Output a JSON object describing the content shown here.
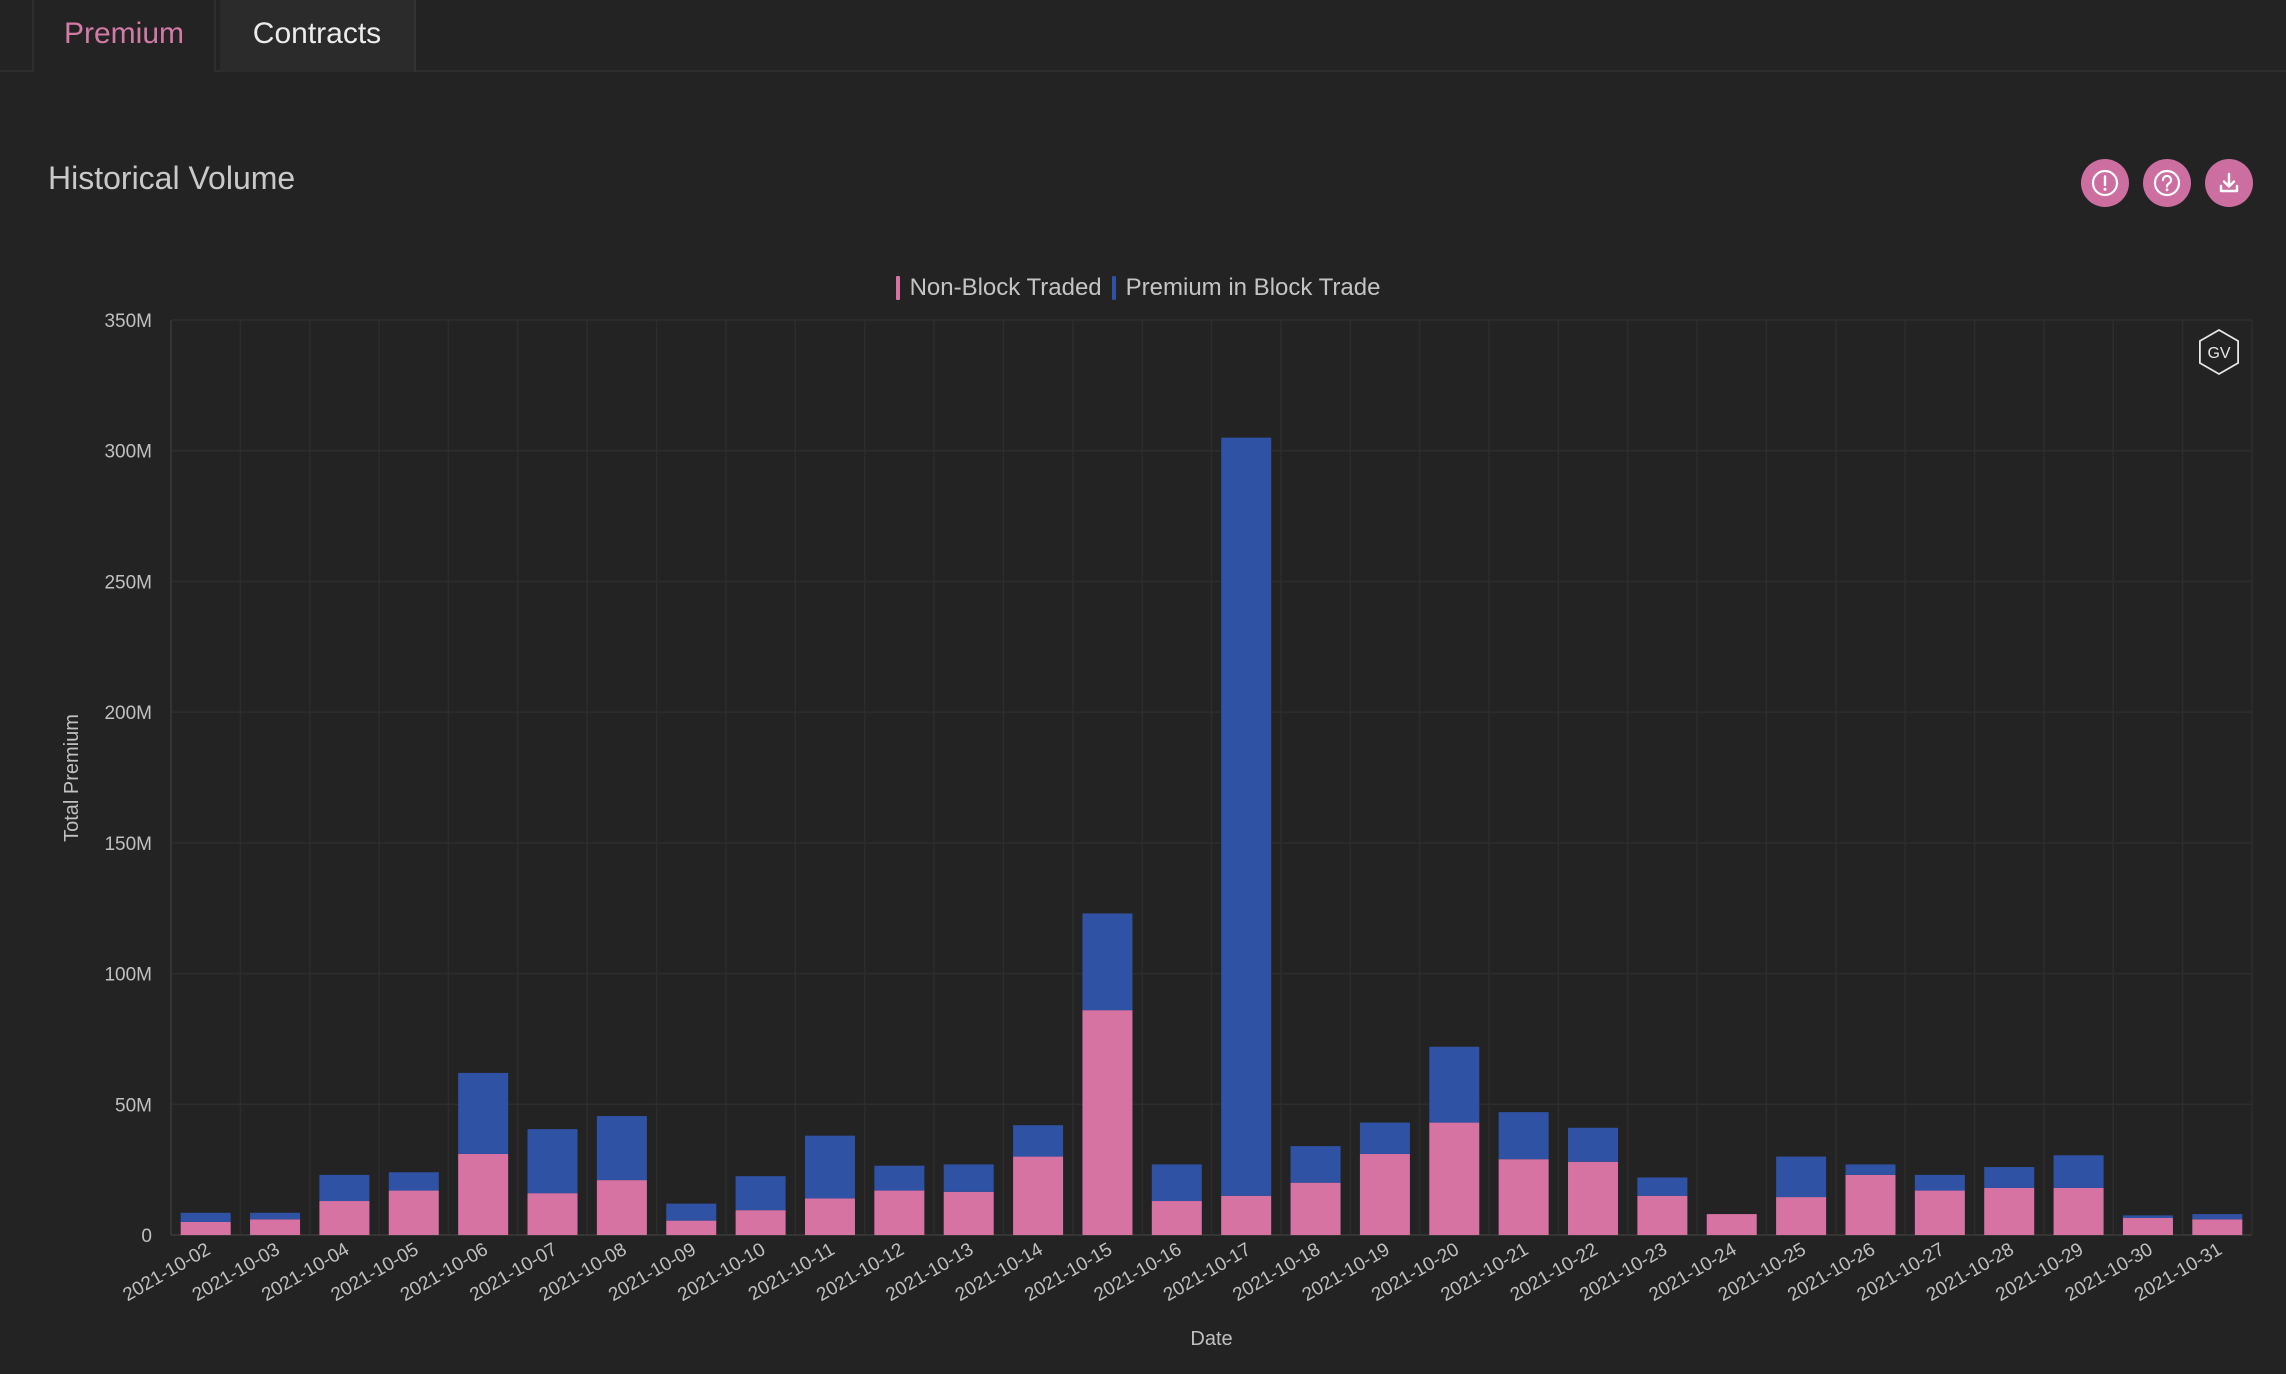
{
  "tabs": [
    {
      "label": "Premium",
      "active": true
    },
    {
      "label": "Contracts",
      "active": false
    }
  ],
  "panel": {
    "title": "Historical Volume",
    "icons": [
      "alert-icon",
      "help-icon",
      "download-icon"
    ]
  },
  "colors": {
    "non_block": "#d673a3",
    "block": "#2f52a5",
    "accent": "#cc6fa0",
    "background": "#232323"
  },
  "watermark": "GV",
  "chart_data": {
    "type": "bar",
    "stacked": true,
    "xlabel": "Date",
    "ylabel": "Total Premium",
    "ylim": [
      0,
      350000000
    ],
    "yticks": [
      0,
      50000000,
      100000000,
      150000000,
      200000000,
      250000000,
      300000000,
      350000000
    ],
    "ytick_labels": [
      "0",
      "50M",
      "100M",
      "150M",
      "200M",
      "250M",
      "300M",
      "350M"
    ],
    "grid": true,
    "legend_position": "top-center",
    "categories": [
      "2021-10-02",
      "2021-10-03",
      "2021-10-04",
      "2021-10-05",
      "2021-10-06",
      "2021-10-07",
      "2021-10-08",
      "2021-10-09",
      "2021-10-10",
      "2021-10-11",
      "2021-10-12",
      "2021-10-13",
      "2021-10-14",
      "2021-10-15",
      "2021-10-16",
      "2021-10-17",
      "2021-10-18",
      "2021-10-19",
      "2021-10-20",
      "2021-10-21",
      "2021-10-22",
      "2021-10-23",
      "2021-10-24",
      "2021-10-25",
      "2021-10-26",
      "2021-10-27",
      "2021-10-28",
      "2021-10-29",
      "2021-10-30",
      "2021-10-31"
    ],
    "series": [
      {
        "name": "Non-Block Traded",
        "color": "#d673a3",
        "values": [
          5000000,
          6000000,
          13000000,
          17000000,
          31000000,
          16000000,
          21000000,
          5500000,
          9500000,
          14000000,
          17000000,
          16500000,
          30000000,
          86000000,
          13000000,
          15000000,
          20000000,
          31000000,
          43000000,
          29000000,
          28000000,
          15000000,
          8000000,
          14500000,
          23000000,
          17000000,
          18000000,
          18000000,
          6500000,
          6000000
        ]
      },
      {
        "name": "Premium in Block Trade",
        "color": "#2f52a5",
        "values": [
          3500000,
          2500000,
          10000000,
          7000000,
          31000000,
          24500000,
          24500000,
          6500000,
          13000000,
          24000000,
          9500000,
          10500000,
          12000000,
          37000000,
          14000000,
          290000000,
          14000000,
          12000000,
          29000000,
          18000000,
          13000000,
          7000000,
          0,
          15500000,
          4000000,
          6000000,
          8000000,
          12500000,
          1000000,
          2000000
        ]
      }
    ]
  }
}
